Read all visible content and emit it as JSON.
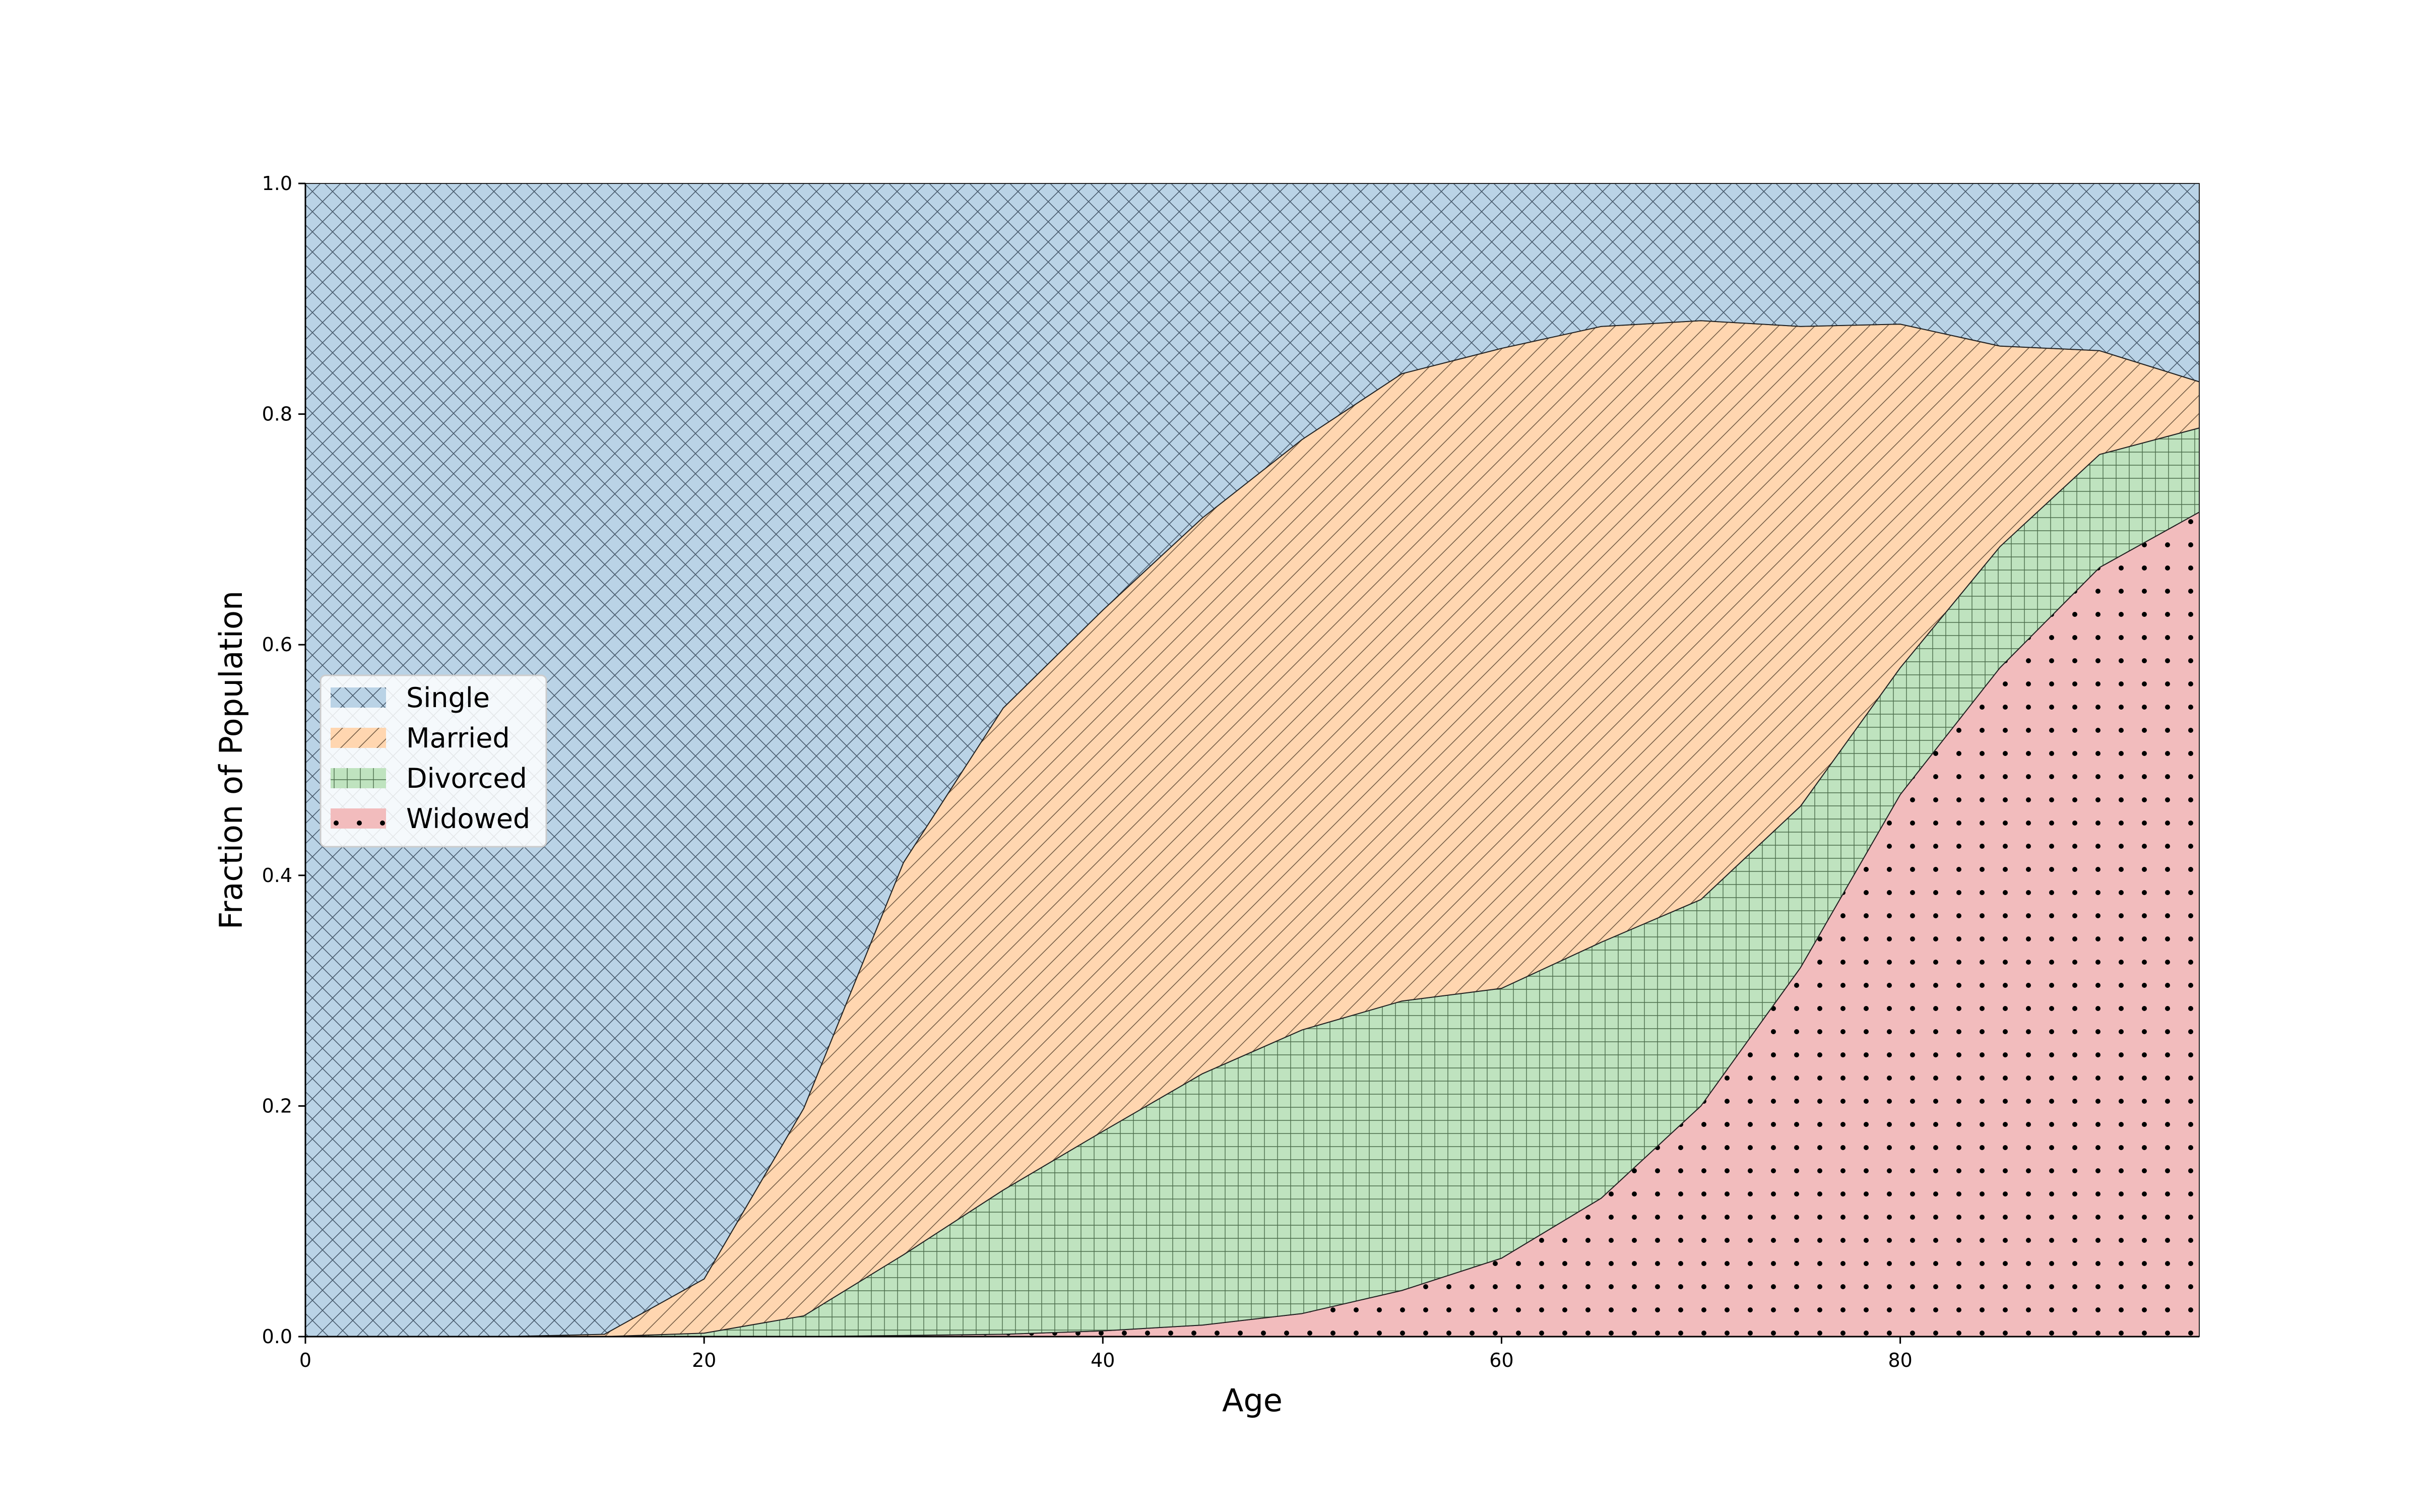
{
  "chart_data": {
    "type": "area",
    "stacked": true,
    "xlabel": "Age",
    "ylabel": "Fraction of Population",
    "xlim": [
      0,
      95
    ],
    "ylim": [
      0,
      1
    ],
    "x_ticks": [
      0,
      20,
      40,
      60,
      80
    ],
    "y_ticks": [
      0.0,
      0.2,
      0.4,
      0.6,
      0.8,
      1.0
    ],
    "grid": false,
    "legend_position": "center-left",
    "x": [
      0,
      5,
      10,
      15,
      20,
      25,
      30,
      35,
      40,
      45,
      50,
      55,
      60,
      65,
      70,
      75,
      80,
      85,
      90,
      95
    ],
    "series": [
      {
        "name": "Widowed",
        "color": "#d62728",
        "hatch": "dots",
        "values": [
          0.0,
          0.0,
          0.0,
          0.0,
          0.0,
          0.0,
          0.001,
          0.002,
          0.005,
          0.01,
          0.02,
          0.04,
          0.068,
          0.12,
          0.2,
          0.32,
          0.47,
          0.58,
          0.667,
          0.715
        ]
      },
      {
        "name": "Divorced",
        "color": "#2ca02c",
        "hatch": "grid",
        "values": [
          0.0,
          0.0,
          0.0,
          0.0,
          0.003,
          0.018,
          0.07,
          0.125,
          0.173,
          0.218,
          0.246,
          0.251,
          0.234,
          0.222,
          0.179,
          0.14,
          0.11,
          0.105,
          0.098,
          0.073
        ]
      },
      {
        "name": "Married",
        "color": "#ff7f0e",
        "hatch": "diagonal",
        "values": [
          0.0,
          0.0,
          0.0,
          0.002,
          0.047,
          0.18,
          0.34,
          0.418,
          0.452,
          0.482,
          0.512,
          0.544,
          0.555,
          0.534,
          0.502,
          0.416,
          0.298,
          0.174,
          0.09,
          0.04
        ]
      },
      {
        "name": "Single",
        "color": "#1f77b4",
        "hatch": "crosshatch",
        "values": [
          1.0,
          1.0,
          1.0,
          0.998,
          0.95,
          0.802,
          0.589,
          0.455,
          0.37,
          0.29,
          0.222,
          0.165,
          0.143,
          0.124,
          0.119,
          0.124,
          0.122,
          0.141,
          0.145,
          0.172
        ]
      }
    ],
    "legend_order": [
      "Single",
      "Married",
      "Divorced",
      "Widowed"
    ]
  }
}
